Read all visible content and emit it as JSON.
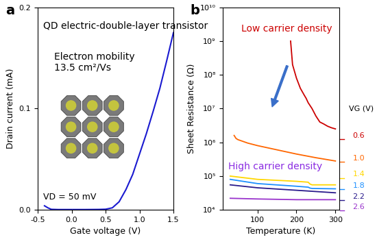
{
  "chart_data": [
    {
      "type": "line",
      "panel_label": "a",
      "x_label": "Gate voltage (V)",
      "y_label": "Drain current (mA)",
      "annotations": [
        {
          "text": "QD electric-double-layer transistor",
          "color": "#000000"
        },
        {
          "text": "Electron mobility\n13.5 cm²/Vs",
          "color": "#000000"
        },
        {
          "text": "VD = 50 mV",
          "color": "#000000"
        }
      ],
      "xlim": [
        -0.5,
        1.5
      ],
      "xticks": [
        {
          "value": -0.5,
          "label": "-0.5"
        },
        {
          "value": 0,
          "label": "0.0"
        },
        {
          "value": 0.5,
          "label": "0.5"
        },
        {
          "value": 1.0,
          "label": "1.0"
        },
        {
          "value": 1.5,
          "label": "1.5"
        }
      ],
      "ylim": [
        0,
        0.2
      ],
      "yticks": [
        {
          "value": 0,
          "label": "0.0"
        },
        {
          "value": 0.1,
          "label": "0.1"
        },
        {
          "value": 0.2,
          "label": "0.2"
        }
      ],
      "series": [
        {
          "name": "Drain current",
          "color": "#1a1ad0",
          "x": [
            -0.4,
            -0.35,
            -0.3,
            -0.2,
            0.0,
            0.2,
            0.4,
            0.5,
            0.6,
            0.7,
            0.8,
            0.9,
            1.0,
            1.1,
            1.2,
            1.3,
            1.4,
            1.5
          ],
          "values": [
            0.004,
            0.002,
            0.0005,
            0.0003,
            0.0003,
            0.0003,
            0.0004,
            0.0006,
            0.002,
            0.008,
            0.02,
            0.035,
            0.055,
            0.075,
            0.097,
            0.12,
            0.147,
            0.175
          ]
        }
      ]
    },
    {
      "type": "line",
      "panel_label": "b",
      "log": "y",
      "x_label": "Temperature (K)",
      "y_label": "Sheet Resistance (Ω)",
      "annotations": [
        {
          "text": "Low carrier density",
          "color": "#cc0000"
        },
        {
          "text": "High carrier density",
          "color": "#8a2be2"
        },
        {
          "text": "VG (V)",
          "color": "#000000"
        }
      ],
      "xlim": [
        10,
        310
      ],
      "xticks": [
        100,
        200,
        300
      ],
      "ylim": [
        10000,
        10000000000
      ],
      "yticks": [
        {
          "value": 10000,
          "label": "10⁴"
        },
        {
          "value": 100000,
          "label": "10⁵"
        },
        {
          "value": 1000000,
          "label": "10⁶"
        },
        {
          "value": 10000000,
          "label": "10⁷"
        },
        {
          "value": 100000000,
          "label": "10⁸"
        },
        {
          "value": 1000000000,
          "label": "10⁹"
        },
        {
          "value": 10000000000,
          "label": "10¹⁰"
        }
      ],
      "series": [
        {
          "name": "0.6",
          "color": "#cc0000",
          "x": [
            185,
            190,
            200,
            210,
            220,
            225,
            230,
            240,
            250,
            260,
            270,
            280,
            290,
            300
          ],
          "values": [
            1000000000,
            200000000,
            80000000,
            40000000,
            25000000,
            20000000,
            15000000,
            10000000,
            6000000,
            4000000,
            3500000,
            3000000,
            2700000,
            2500000
          ]
        },
        {
          "name": "1.0",
          "color": "#ff6600",
          "x": [
            40,
            45,
            50,
            75,
            100,
            150,
            200,
            250,
            300
          ],
          "values": [
            1600000,
            1300000,
            1200000,
            950000,
            800000,
            600000,
            450000,
            350000,
            280000
          ]
        },
        {
          "name": "1.4",
          "color": "#ffd700",
          "x": [
            30,
            100,
            200,
            230,
            235,
            240,
            300
          ],
          "values": [
            100000,
            80000,
            70000,
            66000,
            58000,
            55000,
            55000
          ]
        },
        {
          "name": "1.8",
          "color": "#1e90ff",
          "x": [
            30,
            100,
            200,
            230,
            235,
            240,
            300
          ],
          "values": [
            80000,
            60000,
            50000,
            47000,
            44000,
            43000,
            42000
          ]
        },
        {
          "name": "2.2",
          "color": "#2a1a8c",
          "x": [
            30,
            100,
            200,
            300
          ],
          "values": [
            55000,
            45000,
            38000,
            32000
          ]
        },
        {
          "name": "2.6",
          "color": "#9933cc",
          "x": [
            30,
            100,
            200,
            300
          ],
          "values": [
            22000,
            21000,
            20000,
            20000
          ]
        }
      ]
    }
  ]
}
